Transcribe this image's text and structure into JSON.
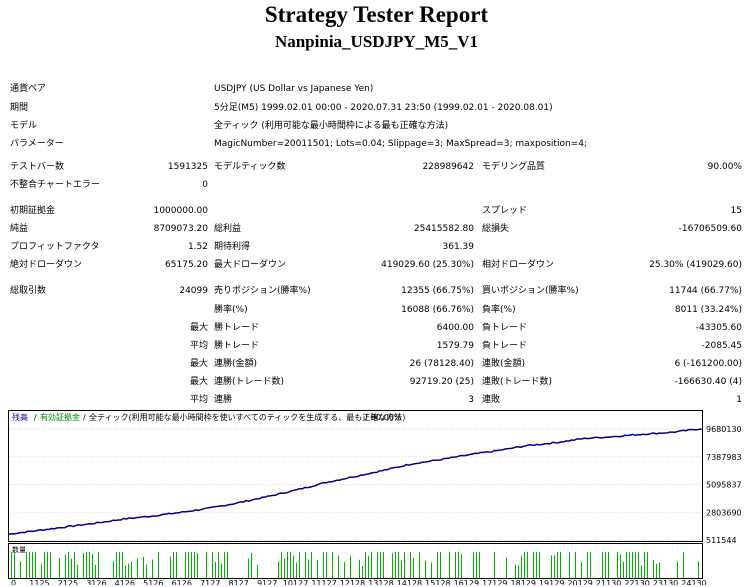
{
  "header": {
    "title": "Strategy Tester Report",
    "subtitle": "Nanpinia_USDJPY_M5_V1"
  },
  "info": [
    {
      "label": "通貨ペア",
      "value": "USDJPY (US Dollar vs Japanese Yen)"
    },
    {
      "label": "期間",
      "value": "5分足(M5) 1999.02.01 00:00 - 2020.07.31 23:50 (1999.02.01 - 2020.08.01)"
    },
    {
      "label": "モデル",
      "value": "全ティック (利用可能な最小時間枠による最も正確な方法)"
    },
    {
      "label": "パラメーター",
      "value": "MagicNumber=20011501; Lots=0.04; Slippage=3; MaxSpread=3; maxposition=4;"
    }
  ],
  "stats": {
    "bars_label": "テストバー数",
    "bars": "1591325",
    "ticks_label": "モデルティック数",
    "ticks": "228989642",
    "quality_label": "モデリング品質",
    "quality": "90.00%",
    "mismatch_label": "不整合チャートエラー",
    "mismatch": "0",
    "deposit_label": "初期証拠金",
    "deposit": "1000000.00",
    "spread_label": "スプレッド",
    "spread": "15",
    "net_label": "純益",
    "net": "8709073.20",
    "gross_profit_label": "総利益",
    "gross_profit": "25415582.80",
    "gross_loss_label": "総損失",
    "gross_loss": "-16706509.60",
    "pf_label": "プロフィットファクタ",
    "pf": "1.52",
    "expected_label": "期待利得",
    "expected": "361.39",
    "abs_dd_label": "絶対ドローダウン",
    "abs_dd": "65175.20",
    "max_dd_label": "最大ドローダウン",
    "max_dd": "419029.60 (25.30%)",
    "rel_dd_label": "相対ドローダウン",
    "rel_dd": "25.30% (419029.60)",
    "trades_label": "総取引数",
    "trades": "24099",
    "short_label": "売りポジション(勝率%)",
    "short": "12355 (66.75%)",
    "long_label": "買いポジション(勝率%)",
    "long": "11744 (66.77%)",
    "win_label": "勝率(%)",
    "win": "16088 (66.76%)",
    "loss_label": "負率(%)",
    "loss": "8011 (33.24%)",
    "max_word": "最大",
    "avg_word": "平均",
    "win_trade_label": "勝トレード",
    "loss_trade_label": "負トレード",
    "max_win": "6400.00",
    "max_loss": "-43305.60",
    "avg_win": "1579.79",
    "avg_loss": "-2085.45",
    "cons_win_label": "連勝(金額)",
    "cons_loss_label": "連敗(金額)",
    "max_cons_win": "26 (78128.40)",
    "max_cons_loss": "6 (-161200.00)",
    "cons_profit_label": "連勝(トレード数)",
    "cons_lossamt_label": "連敗(トレード数)",
    "max_cons_profit": "92719.20 (25)",
    "max_cons_lossamt": "-166630.40 (4)",
    "avg_cons_win_label": "連勝",
    "avg_cons_win": "3",
    "avg_cons_loss_label": "連敗",
    "avg_cons_loss": "1"
  },
  "chart_data": {
    "type": "line",
    "legend": [
      "残高",
      "有効証拠金",
      "全ティック(利用可能な最小時間枠を使いすべてのティックを生成する、最も正確な方法)",
      "90.00%"
    ],
    "x_ticks": [
      "0",
      "1125",
      "2125",
      "3126",
      "4126",
      "5126",
      "6126",
      "7127",
      "8127",
      "9127",
      "10127",
      "11127",
      "12128",
      "13128",
      "14128",
      "15128",
      "16129",
      "17129",
      "18129",
      "19129",
      "20129",
      "21130",
      "22130",
      "23130",
      "24130"
    ],
    "y_ticks": [
      "9680130",
      "7387983",
      "5095837",
      "2803690",
      "511544"
    ],
    "ylim": [
      511544,
      9680130
    ],
    "xlim": [
      0,
      24099
    ],
    "series": [
      {
        "name": "残高",
        "color": "#00008b",
        "x": [
          0,
          1000,
          2000,
          3000,
          4000,
          5000,
          6000,
          7000,
          8000,
          9000,
          10000,
          11000,
          12000,
          13000,
          14000,
          15000,
          16000,
          17000,
          18000,
          19000,
          20000,
          21000,
          22000,
          23000,
          24099
        ],
        "y": [
          1000000,
          1300000,
          1600000,
          1900000,
          2250000,
          2500000,
          2800000,
          3150000,
          3600000,
          4100000,
          4650000,
          5250000,
          5750000,
          6250000,
          6800000,
          7150000,
          7550000,
          7900000,
          8300000,
          8550000,
          8900000,
          9050000,
          9250000,
          9400000,
          9709073
        ]
      }
    ],
    "volume_label": "数量",
    "volume_color": "#00b000"
  }
}
